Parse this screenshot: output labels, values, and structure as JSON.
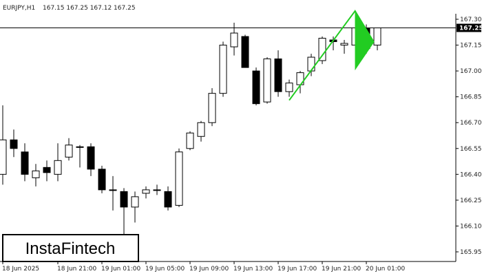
{
  "header": {
    "symbol": "EURJPY,H1",
    "ohlc": "167.15 167.25 167.12 167.25"
  },
  "watermark": {
    "text": "InstaFintech"
  },
  "colors": {
    "background": "#ffffff",
    "axis": "#000000",
    "candle_up_fill": "#ffffff",
    "candle_down_fill": "#000000",
    "candle_outline": "#000000",
    "price_line": "#000000",
    "pattern": "#22cc22",
    "price_tag_bg": "#000000",
    "price_tag_text": "#ffffff"
  },
  "chart_data": {
    "type": "candlestick",
    "symbol": "EURJPY",
    "timeframe": "H1",
    "ylim": [
      165.9,
      167.4
    ],
    "y_ticks": [
      "167.30",
      "167.15",
      "167.00",
      "166.85",
      "166.70",
      "166.55",
      "166.40",
      "166.25",
      "166.10",
      "165.95"
    ],
    "current_price": "167.25",
    "x_ticks": [
      {
        "label": "18 Jun 2025",
        "index": 0
      },
      {
        "label": "18 Jun 21:00",
        "index": 5
      },
      {
        "label": "19 Jun 01:00",
        "index": 9
      },
      {
        "label": "19 Jun 05:00",
        "index": 13
      },
      {
        "label": "19 Jun 09:00",
        "index": 17
      },
      {
        "label": "19 Jun 13:00",
        "index": 21
      },
      {
        "label": "19 Jun 17:00",
        "index": 25
      },
      {
        "label": "19 Jun 21:00",
        "index": 29
      },
      {
        "label": "20 Jun 01:00",
        "index": 33
      }
    ],
    "candles": [
      {
        "o": 166.4,
        "h": 166.8,
        "l": 166.34,
        "c": 166.6
      },
      {
        "o": 166.6,
        "h": 166.66,
        "l": 166.5,
        "c": 166.55
      },
      {
        "o": 166.53,
        "h": 166.58,
        "l": 166.36,
        "c": 166.4
      },
      {
        "o": 166.38,
        "h": 166.46,
        "l": 166.33,
        "c": 166.42
      },
      {
        "o": 166.44,
        "h": 166.48,
        "l": 166.36,
        "c": 166.41
      },
      {
        "o": 166.4,
        "h": 166.58,
        "l": 166.36,
        "c": 166.48
      },
      {
        "o": 166.5,
        "h": 166.61,
        "l": 166.48,
        "c": 166.57
      },
      {
        "o": 166.56,
        "h": 166.57,
        "l": 166.44,
        "c": 166.56
      },
      {
        "o": 166.56,
        "h": 166.58,
        "l": 166.39,
        "c": 166.43
      },
      {
        "o": 166.43,
        "h": 166.45,
        "l": 166.29,
        "c": 166.31
      },
      {
        "o": 166.31,
        "h": 166.39,
        "l": 166.19,
        "c": 166.31
      },
      {
        "o": 166.3,
        "h": 166.32,
        "l": 166.02,
        "c": 166.21
      },
      {
        "o": 166.21,
        "h": 166.3,
        "l": 166.12,
        "c": 166.27
      },
      {
        "o": 166.29,
        "h": 166.33,
        "l": 166.26,
        "c": 166.31
      },
      {
        "o": 166.31,
        "h": 166.34,
        "l": 166.28,
        "c": 166.31
      },
      {
        "o": 166.3,
        "h": 166.33,
        "l": 166.19,
        "c": 166.21
      },
      {
        "o": 166.22,
        "h": 166.55,
        "l": 166.21,
        "c": 166.53
      },
      {
        "o": 166.55,
        "h": 166.65,
        "l": 166.54,
        "c": 166.64
      },
      {
        "o": 166.62,
        "h": 166.71,
        "l": 166.59,
        "c": 166.7
      },
      {
        "o": 166.7,
        "h": 166.9,
        "l": 166.68,
        "c": 166.87
      },
      {
        "o": 166.87,
        "h": 167.17,
        "l": 166.85,
        "c": 167.15
      },
      {
        "o": 167.14,
        "h": 167.28,
        "l": 167.09,
        "c": 167.22
      },
      {
        "o": 167.2,
        "h": 167.21,
        "l": 167.02,
        "c": 167.02
      },
      {
        "o": 167.0,
        "h": 167.02,
        "l": 166.8,
        "c": 166.81
      },
      {
        "o": 166.82,
        "h": 167.08,
        "l": 166.81,
        "c": 167.07
      },
      {
        "o": 167.07,
        "h": 167.12,
        "l": 166.85,
        "c": 166.88
      },
      {
        "o": 166.88,
        "h": 166.95,
        "l": 166.85,
        "c": 166.93
      },
      {
        "o": 166.92,
        "h": 167.0,
        "l": 166.87,
        "c": 166.99
      },
      {
        "o": 167.0,
        "h": 167.1,
        "l": 166.97,
        "c": 167.08
      },
      {
        "o": 167.06,
        "h": 167.2,
        "l": 167.04,
        "c": 167.19
      },
      {
        "o": 167.18,
        "h": 167.2,
        "l": 167.12,
        "c": 167.17
      },
      {
        "o": 167.15,
        "h": 167.18,
        "l": 167.1,
        "c": 167.16
      },
      {
        "o": 167.15,
        "h": 167.27,
        "l": 167.13,
        "c": 167.25
      },
      {
        "o": 167.25,
        "h": 167.27,
        "l": 167.1,
        "c": 167.13
      },
      {
        "o": 167.15,
        "h": 167.25,
        "l": 167.12,
        "c": 167.25
      }
    ],
    "pattern": {
      "name": "bullish pennant",
      "pole": [
        {
          "index": 26,
          "price": 166.83
        },
        {
          "index": 32,
          "price": 167.35
        }
      ],
      "flag": [
        {
          "index": 32,
          "price": 167.35
        },
        {
          "index": 33.7,
          "price": 167.17
        },
        {
          "index": 32,
          "price": 167.01
        }
      ]
    }
  }
}
